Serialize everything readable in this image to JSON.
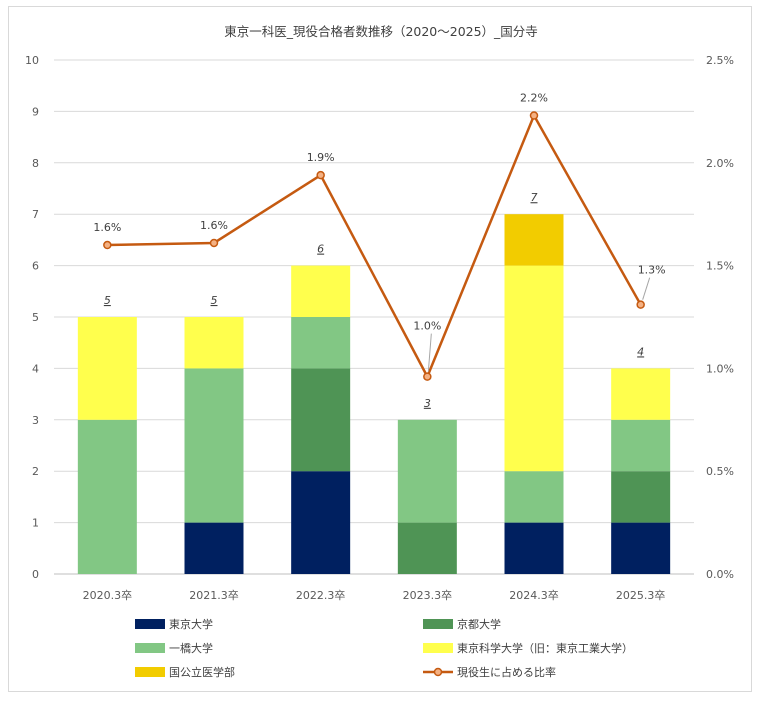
{
  "chart_data": {
    "type": "bar",
    "stacked": true,
    "title": "東京一科医_現役合格者数推移（2020～2025）_国分寺",
    "categories": [
      "2020.3卒",
      "2021.3卒",
      "2022.3卒",
      "2023.3卒",
      "2024.3卒",
      "2025.3卒"
    ],
    "ylim": [
      0,
      10
    ],
    "y_ticks": [
      "0",
      "1",
      "2",
      "3",
      "4",
      "5",
      "6",
      "7",
      "8",
      "9",
      "10"
    ],
    "y2lim": [
      0,
      2.5
    ],
    "y2_ticks": [
      "0.0%",
      "0.5%",
      "1.0%",
      "1.5%",
      "2.0%",
      "2.5%"
    ],
    "grid": true,
    "legend_position": "bottom",
    "series": [
      {
        "name": "東京大学",
        "color": "#002060",
        "values": [
          0,
          1,
          2,
          0,
          1,
          1
        ]
      },
      {
        "name": "京都大学",
        "color": "#4f9455",
        "values": [
          0,
          0,
          2,
          1,
          0,
          1
        ]
      },
      {
        "name": "一橋大学",
        "color": "#82c784",
        "values": [
          3,
          3,
          1,
          2,
          1,
          1
        ]
      },
      {
        "name": "東京科学大学（旧：東京工業大学）",
        "color": "#ffff4d",
        "values": [
          2,
          1,
          1,
          0,
          4,
          1
        ]
      },
      {
        "name": "国公立医学部",
        "color": "#f2cc00",
        "values": [
          0,
          0,
          0,
          0,
          1,
          0
        ]
      }
    ],
    "totals": [
      "5",
      "5",
      "6",
      "3",
      "7",
      "4"
    ],
    "line_series": {
      "name": "現役生に占める比率",
      "color": "#c55a11",
      "axis": "secondary",
      "values": [
        1.6,
        1.61,
        1.94,
        0.96,
        2.23,
        1.31
      ],
      "labels": [
        "1.6%",
        "1.6%",
        "1.9%",
        "1.0%",
        "2.2%",
        "1.3%"
      ]
    }
  }
}
